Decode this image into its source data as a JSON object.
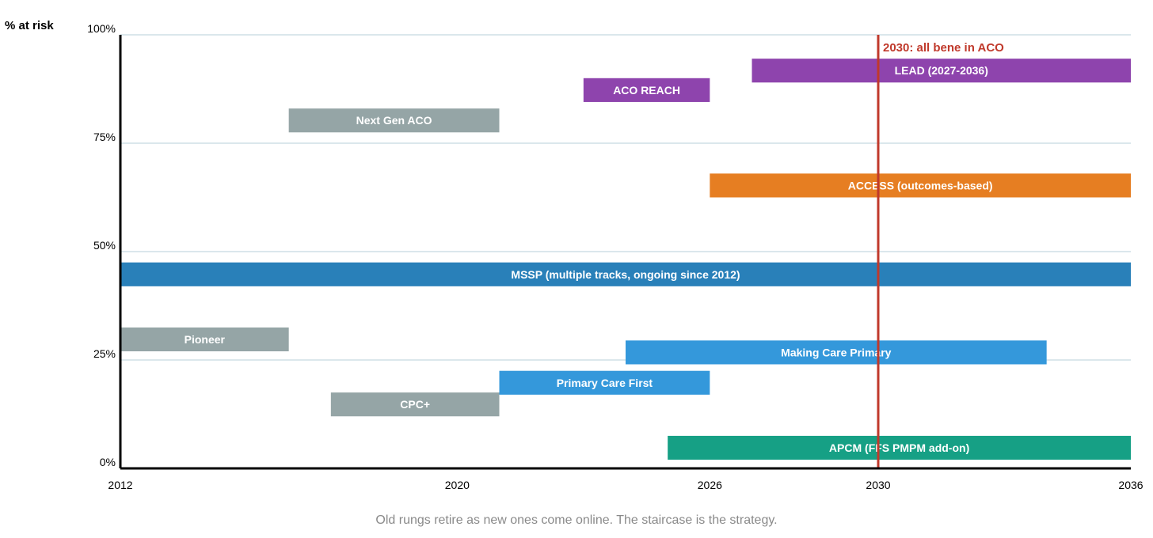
{
  "chart_data": {
    "type": "timeline",
    "ylabel": "% at risk",
    "xlim": [
      2012,
      2036
    ],
    "ylim": [
      0,
      100
    ],
    "x_ticks": [
      {
        "value": 2012,
        "label": "2012"
      },
      {
        "value": 2020,
        "label": "2020"
      },
      {
        "value": 2026,
        "label": "2026"
      },
      {
        "value": 2030,
        "label": "2030"
      },
      {
        "value": 2036,
        "label": "2036"
      }
    ],
    "y_ticks": [
      {
        "value": 0,
        "label": "0%"
      },
      {
        "value": 25,
        "label": "25%"
      },
      {
        "value": 50,
        "label": "50%"
      },
      {
        "value": 75,
        "label": "75%"
      },
      {
        "value": 100,
        "label": "100%"
      }
    ],
    "grid": true,
    "bars": [
      {
        "name": "LEAD (2027-2036)",
        "start": 2027,
        "end": 2036,
        "y_low": 89,
        "y_high": 94.5,
        "color": "#8e44ad"
      },
      {
        "name": "ACO REACH",
        "start": 2023,
        "end": 2026,
        "y_low": 84.5,
        "y_high": 90,
        "color": "#8e44ad"
      },
      {
        "name": "Next Gen ACO",
        "start": 2016,
        "end": 2021,
        "y_low": 77.5,
        "y_high": 83,
        "color": "#95a5a6"
      },
      {
        "name": "ACCESS (outcomes-based)",
        "start": 2026,
        "end": 2036,
        "y_low": 62.5,
        "y_high": 68,
        "color": "#e67e22"
      },
      {
        "name": "MSSP (multiple tracks, ongoing since 2012)",
        "start": 2012,
        "end": 2036,
        "y_low": 42,
        "y_high": 47.5,
        "color": "#2980b9"
      },
      {
        "name": "Pioneer",
        "start": 2012,
        "end": 2016,
        "y_low": 27,
        "y_high": 32.5,
        "color": "#95a5a6"
      },
      {
        "name": "Making Care Primary",
        "start": 2024,
        "end": 2034,
        "y_low": 24,
        "y_high": 29.5,
        "color": "#3498db"
      },
      {
        "name": "Primary Care First",
        "start": 2021,
        "end": 2026,
        "y_low": 17,
        "y_high": 22.5,
        "color": "#3498db"
      },
      {
        "name": "CPC+",
        "start": 2017,
        "end": 2021,
        "y_low": 12,
        "y_high": 17.5,
        "color": "#95a5a6"
      },
      {
        "name": "APCM (FFS PMPM add-on)",
        "start": 2025,
        "end": 2036,
        "y_low": 2,
        "y_high": 7.5,
        "color": "#16a085"
      }
    ],
    "annotations": [
      {
        "type": "vline",
        "x": 2030,
        "label": "2030: all bene in ACO",
        "color": "#c0392b"
      }
    ]
  },
  "caption": "Old rungs retire as new ones come online. The staircase is the strategy."
}
